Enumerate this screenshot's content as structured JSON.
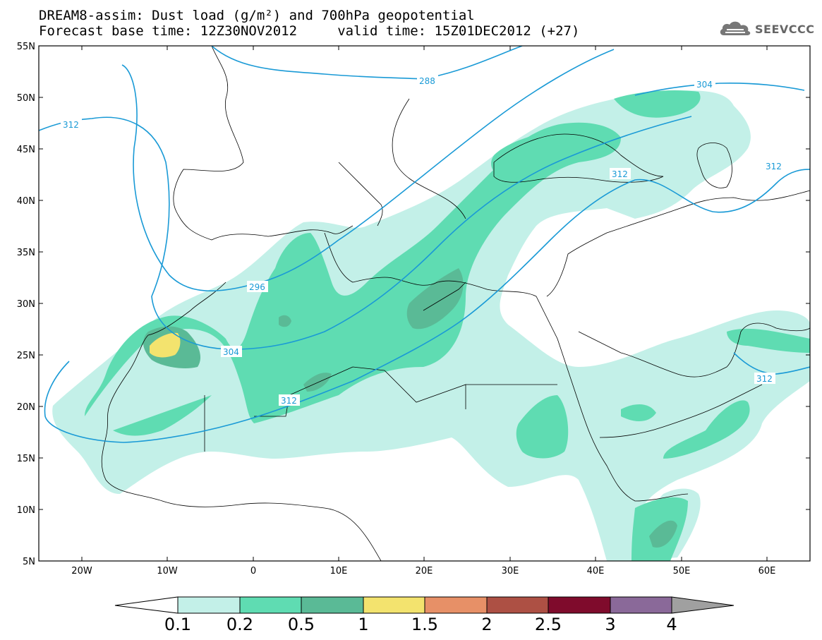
{
  "title": {
    "line1": "DREAM8-assim: Dust load (g/m²) and 700hPa geopotential",
    "line2": "Forecast base time: 12Z30NOV2012     valid time: 15Z01DEC2012 (+27)"
  },
  "logo": {
    "text": "SEEVCCC",
    "icon": "cloud-icon"
  },
  "map": {
    "projection": "lat-lon",
    "lon_range": [
      -25,
      65
    ],
    "lat_range": [
      5,
      55
    ],
    "lat_ticks": [
      "55N",
      "50N",
      "45N",
      "40N",
      "35N",
      "30N",
      "25N",
      "20N",
      "15N",
      "10N",
      "5N"
    ],
    "lon_ticks": [
      "20W",
      "10W",
      "0",
      "10E",
      "20E",
      "30E",
      "40E",
      "50E",
      "60E"
    ],
    "contour_color": "#1a9ad6",
    "contour_labels": [
      "288",
      "304",
      "312",
      "312",
      "312",
      "296",
      "304",
      "312",
      "312"
    ]
  },
  "colorbar": {
    "levels": [
      "0.1",
      "0.2",
      "0.5",
      "1",
      "1.5",
      "2",
      "2.5",
      "3",
      "4"
    ],
    "colors": [
      "#ffffff",
      "#c3f0e8",
      "#5fdcb2",
      "#5aba96",
      "#f3e36e",
      "#e79067",
      "#ad5044",
      "#7f0b2c",
      "#8a6999",
      "#a0a0a0"
    ]
  }
}
